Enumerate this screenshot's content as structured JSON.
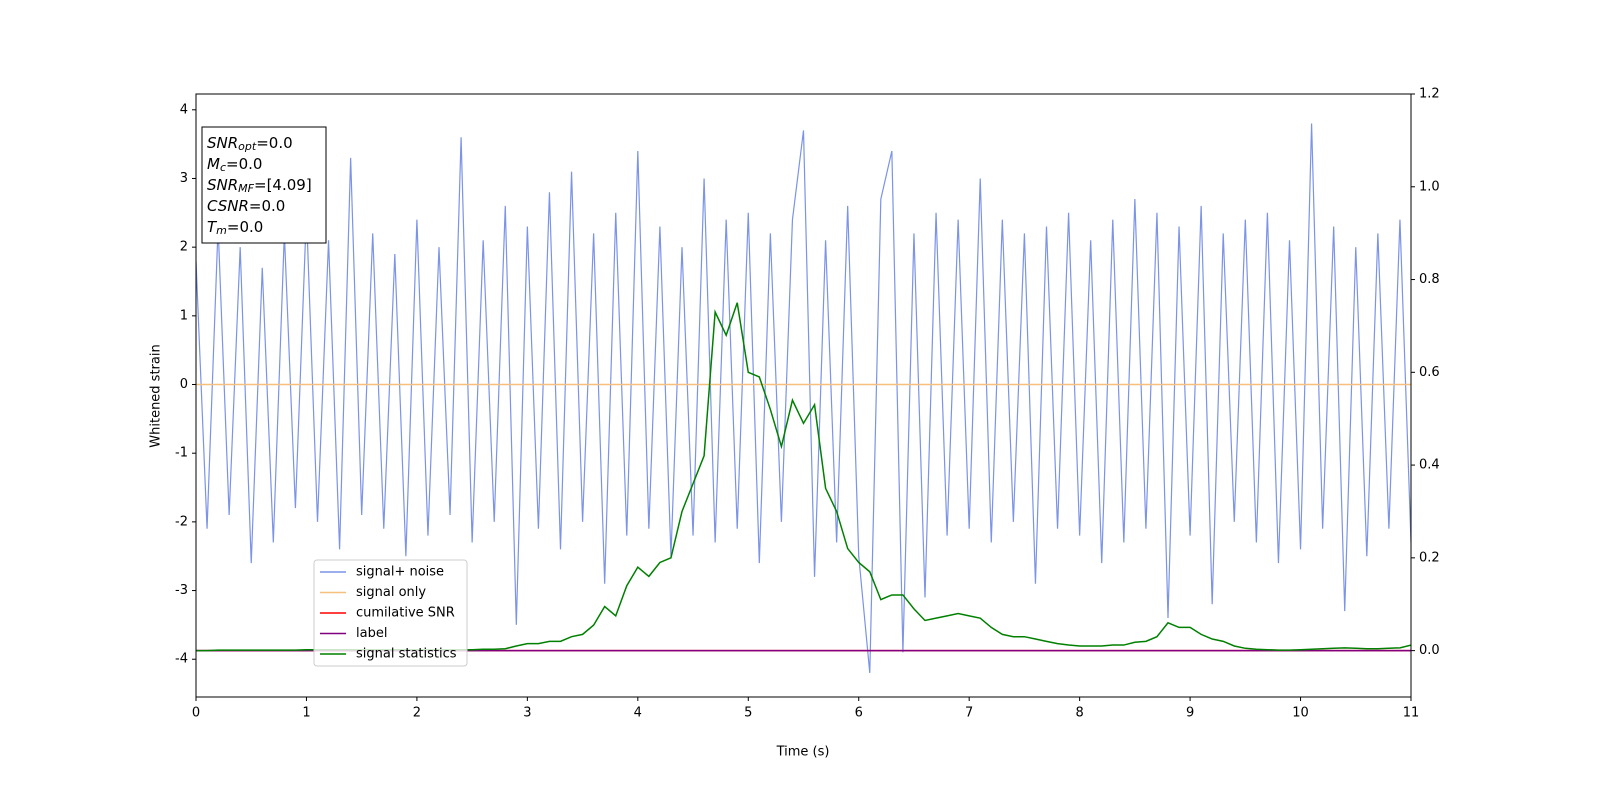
{
  "chart_data": {
    "type": "line",
    "xlabel": "Time (s)",
    "ylabel": "Whitened strain",
    "xlim": [
      0,
      11
    ],
    "ylim": [
      -4.55,
      4.23
    ],
    "y2lim": [
      -0.1,
      1.2
    ],
    "xticks": [
      0,
      1,
      2,
      3,
      4,
      5,
      6,
      7,
      8,
      9,
      10,
      11
    ],
    "yticks": [
      -4,
      -3,
      -2,
      -1,
      0,
      1,
      2,
      3,
      4
    ],
    "y2ticks": [
      {
        "value": 0,
        "label": "0.0"
      },
      {
        "value": 0.2,
        "label": "0.2"
      },
      {
        "value": 0.4,
        "label": "0.4"
      },
      {
        "value": 0.6,
        "label": "0.6"
      },
      {
        "value": 0.8,
        "label": "0.8"
      },
      {
        "value": 1,
        "label": "1.0"
      },
      {
        "value": 1.2,
        "label": "1.2"
      }
    ],
    "legend_loc": "lower left",
    "annotation": [
      {
        "base": "SNR",
        "sub": "opt",
        "text": "=0.0"
      },
      {
        "base": "M",
        "sub": "c",
        "text": "=0.0"
      },
      {
        "base": "SNR",
        "sub": "MF",
        "text": "=[4.09]"
      },
      {
        "base": "CSNR",
        "text": "=0.0"
      },
      {
        "base": "T",
        "sub": "m",
        "text": "=0.0"
      }
    ],
    "x": [
      0,
      0.1,
      0.2,
      0.3,
      0.4,
      0.5,
      0.6,
      0.7,
      0.8,
      0.9,
      1,
      1.1,
      1.2,
      1.3,
      1.4,
      1.5,
      1.6,
      1.7,
      1.8,
      1.9,
      2,
      2.1,
      2.2,
      2.3,
      2.4,
      2.5,
      2.6,
      2.7,
      2.8,
      2.9,
      3,
      3.1,
      3.2,
      3.3,
      3.4,
      3.5,
      3.6,
      3.7,
      3.8,
      3.9,
      4,
      4.1,
      4.2,
      4.3,
      4.4,
      4.5,
      4.6,
      4.7,
      4.8,
      4.9,
      5,
      5.1,
      5.2,
      5.3,
      5.4,
      5.5,
      5.6,
      5.7,
      5.8,
      5.9,
      6,
      6.1,
      6.2,
      6.3,
      6.4,
      6.5,
      6.6,
      6.7,
      6.8,
      6.9,
      7,
      7.1,
      7.2,
      7.3,
      7.4,
      7.5,
      7.6,
      7.7,
      7.8,
      7.9,
      8,
      8.1,
      8.2,
      8.3,
      8.4,
      8.5,
      8.6,
      8.7,
      8.8,
      8.9,
      9,
      9.1,
      9.2,
      9.3,
      9.4,
      9.5,
      9.6,
      9.7,
      9.8,
      9.9,
      10,
      10.1,
      10.2,
      10.3,
      10.4,
      10.5,
      10.6,
      10.7,
      10.8,
      10.9,
      11
    ],
    "series": [
      {
        "name": "signal+ noise",
        "color": "#7b93e8",
        "values": [
          1.8,
          -2.1,
          2.3,
          -1.9,
          2.0,
          -2.6,
          1.7,
          -2.3,
          2.2,
          -1.8,
          2.5,
          -2.0,
          2.1,
          -2.4,
          3.3,
          -1.9,
          2.2,
          -2.1,
          1.9,
          -2.5,
          2.4,
          -2.2,
          2.0,
          -1.9,
          3.6,
          -2.3,
          2.1,
          -2.0,
          2.6,
          -3.5,
          2.3,
          -2.1,
          2.8,
          -2.4,
          3.1,
          -2.0,
          2.2,
          -2.9,
          2.5,
          -2.2,
          3.4,
          -2.1,
          2.3,
          -2.5,
          2.0,
          -2.2,
          3.0,
          -2.3,
          2.4,
          -2.1,
          2.5,
          -2.6,
          2.2,
          -2.0,
          2.4,
          3.7,
          -2.8,
          2.1,
          -2.3,
          2.6,
          -2.5,
          -4.2,
          2.7,
          3.4,
          -3.9,
          2.2,
          -3.1,
          2.5,
          -2.2,
          2.4,
          -2.1,
          3.0,
          -2.3,
          2.4,
          -2.0,
          2.2,
          -2.9,
          2.3,
          -2.1,
          2.5,
          -2.2,
          2.1,
          -2.6,
          2.4,
          -2.3,
          2.7,
          -2.1,
          2.5,
          -3.4,
          2.3,
          -2.2,
          2.6,
          -3.2,
          2.2,
          -2.0,
          2.4,
          -2.3,
          2.5,
          -2.6,
          2.1,
          -2.4,
          3.8,
          -2.1,
          2.3,
          -3.3,
          2.0,
          -2.5,
          2.2,
          -2.1,
          2.4,
          -2.3
        ]
      },
      {
        "name": "signal only",
        "color": "#f5c07e",
        "values": [
          0,
          0,
          0,
          0,
          0,
          0,
          0,
          0,
          0,
          0,
          0,
          0,
          0,
          0,
          0,
          0,
          0,
          0,
          0,
          0,
          0,
          0,
          0,
          0,
          0,
          0,
          0,
          0,
          0,
          0,
          0,
          0,
          0,
          0,
          0,
          0,
          0,
          0,
          0,
          0,
          0,
          0,
          0,
          0,
          0,
          0,
          0,
          0,
          0,
          0,
          0,
          0,
          0,
          0,
          0,
          0,
          0,
          0,
          0,
          0,
          0,
          0,
          0,
          0,
          0,
          0,
          0,
          0,
          0,
          0,
          0,
          0,
          0,
          0,
          0,
          0,
          0,
          0,
          0,
          0,
          0,
          0,
          0,
          0,
          0,
          0,
          0,
          0,
          0,
          0,
          0,
          0,
          0,
          0,
          0,
          0,
          0,
          0,
          0,
          0,
          0,
          0,
          0,
          0,
          0,
          0,
          0,
          0,
          0,
          0,
          0
        ]
      },
      {
        "name": "cumilative SNR",
        "color": "#ff0000",
        "axis": "y2",
        "values": [
          0,
          0,
          0,
          0,
          0,
          0,
          0,
          0,
          0,
          0,
          0,
          0,
          0,
          0,
          0,
          0,
          0,
          0,
          0,
          0,
          0,
          0,
          0,
          0,
          0,
          0,
          0,
          0,
          0,
          0,
          0,
          0,
          0,
          0,
          0,
          0,
          0,
          0,
          0,
          0,
          0,
          0,
          0,
          0,
          0,
          0,
          0,
          0,
          0,
          0,
          0,
          0,
          0,
          0,
          0,
          0,
          0,
          0,
          0,
          0,
          0,
          0,
          0,
          0,
          0,
          0,
          0,
          0,
          0,
          0,
          0,
          0,
          0,
          0,
          0,
          0,
          0,
          0,
          0,
          0,
          0,
          0,
          0,
          0,
          0,
          0,
          0,
          0,
          0,
          0,
          0,
          0,
          0,
          0,
          0,
          0,
          0,
          0,
          0,
          0,
          0,
          0,
          0,
          0,
          0,
          0,
          0,
          0,
          0,
          0,
          0
        ]
      },
      {
        "name": "label",
        "color": "#800080",
        "axis": "y2",
        "values": [
          0,
          0,
          0,
          0,
          0,
          0,
          0,
          0,
          0,
          0,
          0,
          0,
          0,
          0,
          0,
          0,
          0,
          0,
          0,
          0,
          0,
          0,
          0,
          0,
          0,
          0,
          0,
          0,
          0,
          0,
          0,
          0,
          0,
          0,
          0,
          0,
          0,
          0,
          0,
          0,
          0,
          0,
          0,
          0,
          0,
          0,
          0,
          0,
          0,
          0,
          0,
          0,
          0,
          0,
          0,
          0,
          0,
          0,
          0,
          0,
          0,
          0,
          0,
          0,
          0,
          0,
          0,
          0,
          0,
          0,
          0,
          0,
          0,
          0,
          0,
          0,
          0,
          0,
          0,
          0,
          0,
          0,
          0,
          0,
          0,
          0,
          0,
          0,
          0,
          0,
          0,
          0,
          0,
          0,
          0,
          0,
          0,
          0,
          0,
          0,
          0,
          0,
          0,
          0,
          0,
          0,
          0,
          0,
          0,
          0,
          0
        ]
      },
      {
        "name": "signal statistics",
        "color": "#008000",
        "axis": "y2",
        "values": [
          0,
          0,
          0.001,
          0.001,
          0.001,
          0.001,
          0.001,
          0.001,
          0.001,
          0.001,
          0.002,
          0.002,
          0.002,
          0.002,
          0.002,
          0.002,
          0.002,
          0.002,
          0.002,
          0.002,
          0.002,
          0.002,
          0.002,
          0.002,
          0.002,
          0.002,
          0.003,
          0.003,
          0.004,
          0.01,
          0.015,
          0.015,
          0.02,
          0.02,
          0.03,
          0.035,
          0.055,
          0.095,
          0.075,
          0.14,
          0.18,
          0.16,
          0.19,
          0.2,
          0.3,
          0.36,
          0.42,
          0.73,
          0.68,
          0.75,
          0.6,
          0.59,
          0.52,
          0.44,
          0.54,
          0.49,
          0.53,
          0.35,
          0.3,
          0.22,
          0.19,
          0.17,
          0.11,
          0.12,
          0.12,
          0.09,
          0.065,
          0.07,
          0.075,
          0.08,
          0.075,
          0.07,
          0.05,
          0.035,
          0.03,
          0.03,
          0.025,
          0.02,
          0.015,
          0.012,
          0.01,
          0.01,
          0.01,
          0.012,
          0.012,
          0.018,
          0.02,
          0.03,
          0.06,
          0.05,
          0.05,
          0.035,
          0.025,
          0.02,
          0.01,
          0.005,
          0.003,
          0.002,
          0.001,
          0.001,
          0.002,
          0.003,
          0.004,
          0.005,
          0.006,
          0.005,
          0.004,
          0.004,
          0.005,
          0.006,
          0.012
        ]
      }
    ]
  }
}
